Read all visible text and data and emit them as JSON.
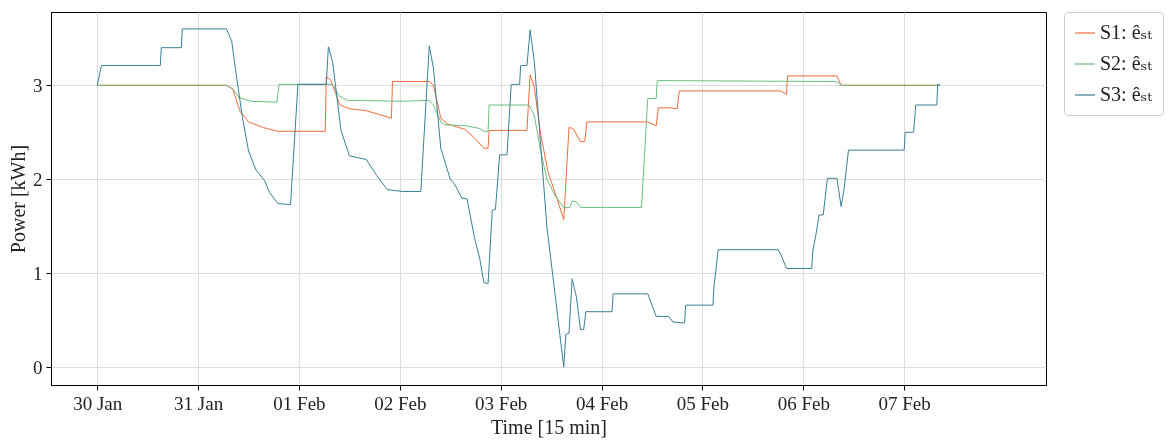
{
  "chart_data": {
    "type": "line",
    "xlabel": "Time [15 min]",
    "ylabel": "Power [kWh]",
    "xlim": [
      "--01-29T13:00",
      "--02-08T09:45"
    ],
    "xticks": [
      {
        "value": "--01-30",
        "label": "30 Jan"
      },
      {
        "value": "--01-31",
        "label": "31 Jan"
      },
      {
        "value": "--02-01",
        "label": "01 Feb"
      },
      {
        "value": "--02-02",
        "label": "02 Feb"
      },
      {
        "value": "--02-03",
        "label": "03 Feb"
      },
      {
        "value": "--02-04",
        "label": "04 Feb"
      },
      {
        "value": "--02-05",
        "label": "05 Feb"
      },
      {
        "value": "--02-06",
        "label": "06 Feb"
      },
      {
        "value": "--02-07",
        "label": "07 Feb"
      }
    ],
    "ylim": [
      -0.19,
      3.78
    ],
    "yticks": [
      0,
      1,
      2,
      3
    ],
    "grid": true,
    "legend": "right",
    "series": [
      {
        "name": "S1: êₛₜ",
        "color": "#f26b3a",
        "x": [
          "--01-30T00:00",
          "--01-31T06:45",
          "--01-31T08:15",
          "--01-31T10:00",
          "--01-31T12:00",
          "--01-31T15:30",
          "--01-31T19:00",
          "--02-01T06:15",
          "--02-01T06:30",
          "--02-01T07:30",
          "--02-01T09:45",
          "--02-01T12:00",
          "--02-01T16:00",
          "--02-01T22:00",
          "--02-01T22:15",
          "--02-02T07:00",
          "--02-02T08:00",
          "--02-02T09:45",
          "--02-02T11:15",
          "--02-02T15:30",
          "--02-02T17:45",
          "--02-02T20:00",
          "--02-02T21:00",
          "--02-02T21:15",
          "--02-03T06:15",
          "--02-03T07:00",
          "--02-03T08:00",
          "--02-03T09:30",
          "--02-03T11:15",
          "--02-03T13:30",
          "--02-03T15:00",
          "--02-03T16:15",
          "--02-03T17:15",
          "--02-03T19:00",
          "--02-03T20:00",
          "--02-03T20:30",
          "--02-04T11:00",
          "--02-04T13:00",
          "--02-04T13:30",
          "--02-04T16:30",
          "--02-04T18:00",
          "--02-04T18:30",
          "--02-05T18:45",
          "--02-05T20:00",
          "--02-05T20:15",
          "--02-06T08:00",
          "--02-06T09:00",
          "--02-07T08:30"
        ],
        "values": [
          3.0,
          3.0,
          2.96,
          2.72,
          2.61,
          2.55,
          2.51,
          2.51,
          3.09,
          3.06,
          2.79,
          2.75,
          2.73,
          2.65,
          3.04,
          3.04,
          3.0,
          2.65,
          2.59,
          2.53,
          2.44,
          2.33,
          2.33,
          2.52,
          2.52,
          3.11,
          2.98,
          2.48,
          2.08,
          1.78,
          1.57,
          2.55,
          2.54,
          2.4,
          2.4,
          2.61,
          2.61,
          2.57,
          2.76,
          2.76,
          2.75,
          2.94,
          2.94,
          2.9,
          3.1,
          3.1,
          3.0,
          3.0
        ]
      },
      {
        "name": "S2: êₛₜ",
        "color": "#6abf80",
        "x": [
          "--01-30T00:00",
          "--01-31T06:45",
          "--01-31T08:15",
          "--01-31T09:45",
          "--01-31T12:30",
          "--01-31T18:45",
          "--01-31T19:15",
          "--02-01T08:00",
          "--02-01T09:30",
          "--02-01T11:30",
          "--02-02T00:30",
          "--02-02T07:00",
          "--02-02T08:00",
          "--02-02T09:45",
          "--02-02T10:45",
          "--02-02T15:30",
          "--02-02T19:00",
          "--02-02T20:00",
          "--02-02T21:00",
          "--02-02T21:15",
          "--02-03T06:45",
          "--02-03T08:00",
          "--02-03T09:30",
          "--02-03T11:00",
          "--02-03T13:00",
          "--02-03T15:00",
          "--02-03T16:30",
          "--02-03T17:00",
          "--02-03T18:00",
          "--02-03T19:00",
          "--02-04T09:30",
          "--02-04T11:00",
          "--02-04T13:00",
          "--02-04T13:15",
          "--02-06T07:45",
          "--02-06T09:00",
          "--02-07T08:30"
        ],
        "values": [
          3.0,
          3.0,
          2.96,
          2.87,
          2.83,
          2.82,
          3.01,
          3.01,
          2.89,
          2.84,
          2.83,
          2.84,
          2.79,
          2.61,
          2.58,
          2.57,
          2.54,
          2.51,
          2.51,
          2.79,
          2.79,
          2.68,
          2.3,
          2.0,
          1.82,
          1.7,
          1.7,
          1.77,
          1.76,
          1.7,
          1.7,
          2.86,
          2.86,
          3.05,
          3.04,
          3.0,
          3.0
        ]
      },
      {
        "name": "S3: êₛₜ",
        "color": "#3a7f95",
        "x": [
          "--01-30T00:00",
          "--01-30T01:00",
          "--01-30T15:00",
          "--01-30T15:15",
          "--01-30T20:00",
          "--01-30T20:15",
          "--01-31T06:45",
          "--01-31T08:00",
          "--01-31T09:00",
          "--01-31T10:30",
          "--01-31T12:00",
          "--01-31T13:45",
          "--01-31T15:45",
          "--01-31T17:00",
          "--01-31T19:00",
          "--01-31T22:00",
          "--01-31T23:45",
          "--02-01T06:30",
          "--02-01T07:00",
          "--02-01T08:00",
          "--02-01T10:00",
          "--02-01T12:00",
          "--02-01T16:00",
          "--02-01T18:30",
          "--02-01T21:00",
          "--02-02T00:30",
          "--02-02T05:00",
          "--02-02T07:00",
          "--02-02T08:00",
          "--02-02T09:45",
          "--02-02T12:00",
          "--02-02T13:00",
          "--02-02T14:45",
          "--02-02T16:00",
          "--02-02T17:45",
          "--02-02T19:00",
          "--02-02T20:00",
          "--02-02T21:00",
          "--02-02T22:00",
          "--02-02T22:45",
          "--02-02T23:45",
          "--02-03T01:30",
          "--02-03T02:30",
          "--02-03T04:30",
          "--02-03T04:45",
          "--02-03T06:15",
          "--02-03T07:00",
          "--02-03T08:00",
          "--02-03T11:00",
          "--02-03T13:00",
          "--02-03T15:00",
          "--02-03T15:30",
          "--02-03T16:15",
          "--02-03T17:00",
          "--02-03T18:00",
          "--02-03T19:00",
          "--02-03T19:45",
          "--02-03T20:15",
          "--02-04T02:30",
          "--02-04T02:45",
          "--02-04T11:00",
          "--02-04T13:00",
          "--02-04T16:00",
          "--02-04T17:00",
          "--02-04T19:45",
          "--02-04T20:00",
          "--02-05T02:30",
          "--02-05T02:45",
          "--02-05T03:15",
          "--02-05T03:45",
          "--02-05T18:00",
          "--02-05T18:45",
          "--02-05T20:00",
          "--02-06T02:00",
          "--02-06T02:15",
          "--02-06T03:00",
          "--02-06T03:45",
          "--02-06T04:45",
          "--02-06T05:15",
          "--02-06T05:45",
          "--02-06T08:00",
          "--02-06T09:00",
          "--02-06T09:45",
          "--02-06T10:15",
          "--02-06T10:45",
          "--02-06T19:15",
          "--02-07T00:00",
          "--02-07T00:15",
          "--02-07T02:15",
          "--02-07T02:45",
          "--02-07T07:45",
          "--02-07T08:00",
          "--02-07T08:30"
        ],
        "values": [
          3.0,
          3.21,
          3.21,
          3.4,
          3.4,
          3.6,
          3.6,
          3.47,
          3.14,
          2.67,
          2.3,
          2.1,
          1.99,
          1.86,
          1.74,
          1.73,
          3.01,
          3.01,
          3.41,
          3.25,
          2.52,
          2.25,
          2.21,
          2.04,
          1.89,
          1.87,
          1.87,
          3.42,
          3.18,
          2.33,
          2.0,
          1.95,
          1.8,
          1.79,
          1.38,
          1.16,
          0.9,
          0.89,
          1.67,
          1.68,
          2.26,
          2.26,
          3.01,
          3.01,
          3.21,
          3.21,
          3.59,
          3.25,
          1.49,
          0.75,
          0.0,
          0.35,
          0.36,
          0.94,
          0.75,
          0.4,
          0.4,
          0.59,
          0.59,
          0.78,
          0.78,
          0.54,
          0.54,
          0.48,
          0.47,
          0.66,
          0.66,
          0.86,
          1.05,
          1.25,
          1.25,
          1.19,
          1.05,
          1.05,
          1.23,
          1.41,
          1.62,
          1.62,
          1.82,
          2.01,
          2.01,
          1.71,
          1.91,
          2.11,
          2.31,
          2.31,
          2.31,
          2.5,
          2.5,
          2.79,
          2.79,
          3.01,
          3.01
        ]
      }
    ]
  }
}
